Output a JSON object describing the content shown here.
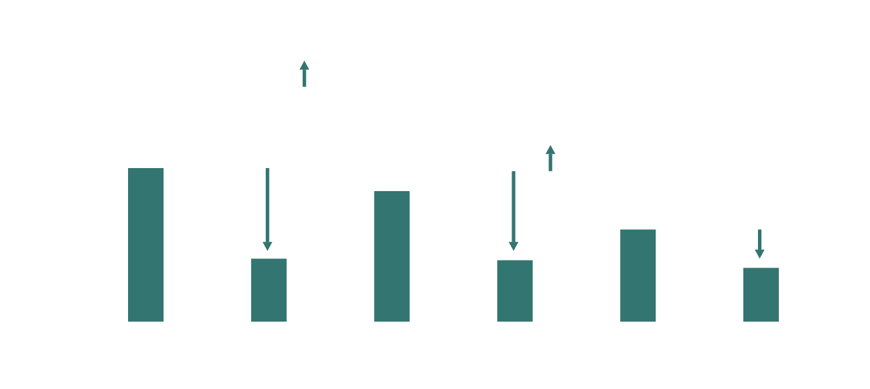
{
  "chart_data": {
    "type": "bar",
    "title": "",
    "xlabel": "",
    "ylabel": "",
    "categories": [
      "",
      "",
      "",
      "",
      "",
      ""
    ],
    "values": [
      100,
      41,
      85,
      40,
      60,
      35
    ],
    "ylim": [
      0,
      100
    ],
    "grid": false,
    "legend": "none",
    "annotations": [
      {
        "type": "arrow",
        "direction": "up",
        "category_index": 1,
        "from": 153,
        "to": 170
      },
      {
        "type": "arrow",
        "direction": "down",
        "category_index": 1,
        "from": 100,
        "to": 46
      },
      {
        "type": "arrow",
        "direction": "up",
        "category_index": 3,
        "from": 98,
        "to": 115
      },
      {
        "type": "arrow",
        "direction": "down",
        "category_index": 3,
        "from": 98,
        "to": 46
      },
      {
        "type": "arrow",
        "direction": "down",
        "category_index": 5,
        "from": 60,
        "to": 41
      }
    ]
  },
  "colors": {
    "bar": "#337570",
    "arrow": "#337570",
    "background": "#ffffff"
  }
}
